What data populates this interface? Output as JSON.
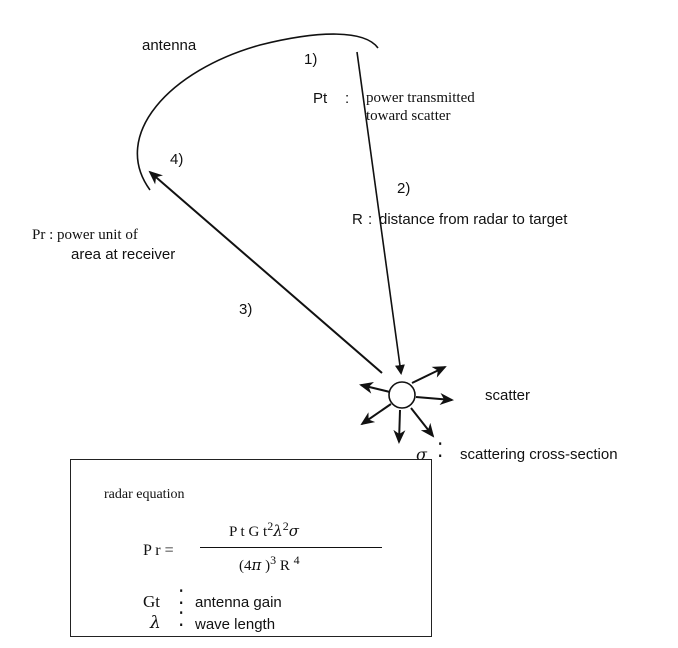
{
  "labels": {
    "antenna": "antenna",
    "step1": "1)",
    "step2": "2)",
    "step3": "3)",
    "step4": "4)",
    "pt_symbol": "Pt",
    "pt_colon": ":",
    "pt_desc_line1": "power transmitted",
    "pt_desc_line2": "toward scatter",
    "r_symbol": "R",
    "r_colon": ":",
    "r_desc": "distance from radar to target",
    "pr_desc_line1": "Pr : power  unit of",
    "pr_desc_line2": "area at receiver",
    "scatter": "scatter",
    "sigma_symbol": "σ",
    "sigma_colon": "⁚",
    "sigma_desc": "scattering cross-section"
  },
  "equation_box": {
    "title": "radar equation",
    "lhs": "P r  =",
    "numerator": {
      "p": "P t G t",
      "exp1": "2",
      "lambda": "λ",
      "exp2": "2",
      "sigma": "σ"
    },
    "denominator": {
      "open": "(4",
      "pi": "π",
      "close": " )",
      "exp3": "3",
      "r": " R ",
      "exp4": "4"
    },
    "gt_symbol": "Gt",
    "gt_colon": "⁚",
    "gt_desc": "antenna gain",
    "lambda_symbol": "λ",
    "lambda_colon": "⁚",
    "lambda_desc": "wave length"
  },
  "icons": {
    "antenna": "antenna-arc",
    "scatter": "scatter-circle",
    "arrows": "scatter-direction-arrows"
  }
}
